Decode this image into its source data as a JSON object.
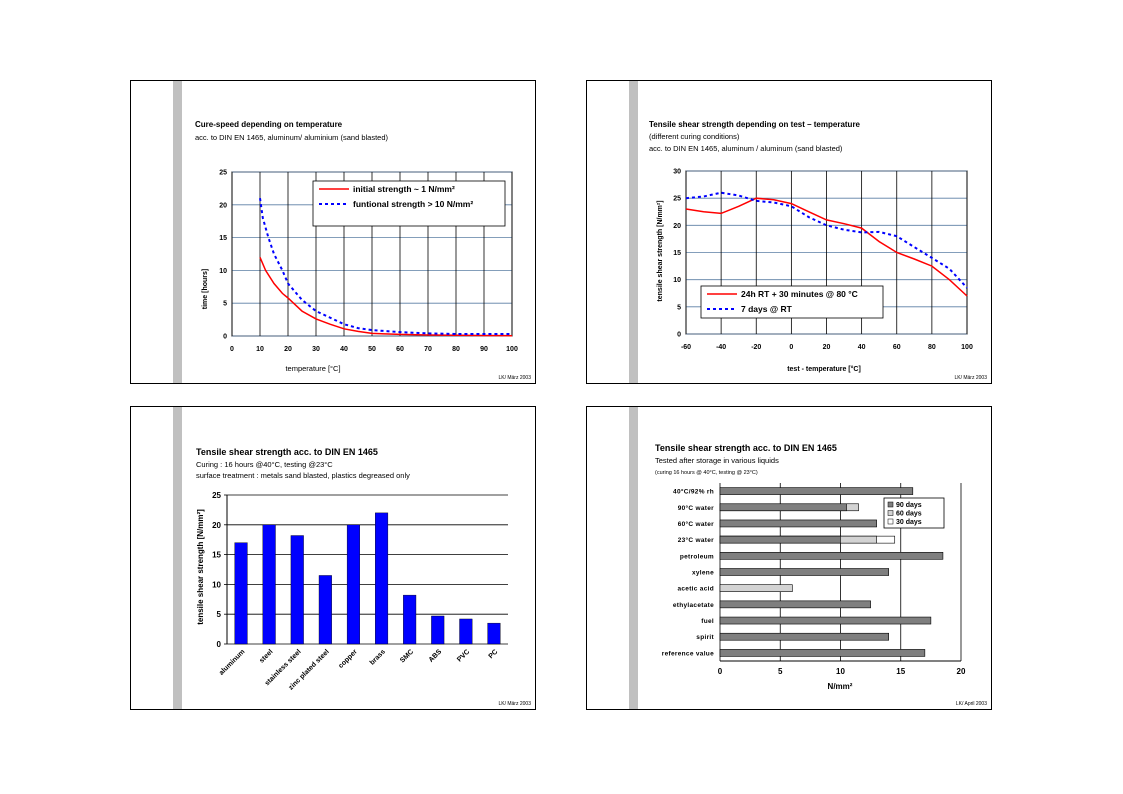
{
  "slides": [
    {
      "title": "Cure-speed depending on temperature",
      "subtitle": [
        "acc. to DIN EN 1465, aluminum/ aluminium (sand blasted)"
      ],
      "footer": "LK/ März 2003"
    },
    {
      "title": "Tensile shear strength depending on  test – temperature",
      "subtitle": [
        "(different curing conditions)",
        "acc. to DIN EN 1465, aluminum / aluminum (sand blasted)"
      ],
      "footer": "LK/ März 2003"
    },
    {
      "title": "Tensile shear strength acc. to DIN EN 1465",
      "subtitle": [
        "Curing  : 16 hours @40°C,  testing @23°C",
        "surface treatment : metals sand blasted, plastics degreased only"
      ],
      "footer": "LK/ März 2003"
    },
    {
      "title": "Tensile shear strength acc. to DIN EN 1465",
      "subtitle": [
        "Tested after storage in various liquids",
        "(curing 16 hours @ 40°C,  testing @ 23°C)"
      ],
      "footer": "LK/ April 2003"
    }
  ],
  "chart_data": [
    {
      "type": "line",
      "xlabel": "temperature [°C]",
      "ylabel": "time [hours]",
      "xlim": [
        0,
        100
      ],
      "ylim": [
        0,
        25
      ],
      "xticks": [
        0,
        10,
        20,
        30,
        40,
        50,
        60,
        70,
        80,
        90,
        100
      ],
      "yticks": [
        0,
        5,
        10,
        15,
        20,
        25
      ],
      "grid": true,
      "legend_position": "top-right",
      "series": [
        {
          "name": "initial strength      ~  1 N/mm²",
          "color": "#ff0000",
          "style": "solid",
          "x": [
            10,
            12,
            15,
            18,
            20,
            25,
            30,
            35,
            40,
            45,
            50,
            60,
            70,
            80,
            90,
            100
          ],
          "y": [
            12,
            10,
            8,
            6.5,
            5.8,
            3.8,
            2.6,
            1.8,
            1.1,
            0.7,
            0.4,
            0.25,
            0.15,
            0.1,
            0.08,
            0.05
          ]
        },
        {
          "name": "funtional strength > 10 N/mm²",
          "color": "#0000ff",
          "style": "dashed",
          "x": [
            10,
            11,
            13,
            15,
            18,
            20,
            25,
            30,
            35,
            40,
            45,
            50,
            60,
            70,
            80,
            90,
            100
          ],
          "y": [
            21,
            18,
            15,
            12.5,
            10,
            8,
            5.5,
            3.8,
            2.8,
            1.8,
            1.2,
            0.9,
            0.6,
            0.4,
            0.3,
            0.3,
            0.3
          ]
        }
      ]
    },
    {
      "type": "line",
      "xlabel": "test - temperature [°C]",
      "ylabel": "tensile shear strength [N/mm²]",
      "xlim": [
        -60,
        100
      ],
      "ylim": [
        0,
        30
      ],
      "xticks": [
        -60,
        -40,
        -20,
        0,
        20,
        40,
        60,
        80,
        100
      ],
      "yticks": [
        0,
        5,
        10,
        15,
        20,
        25,
        30
      ],
      "grid": true,
      "legend_position": "bottom-center",
      "series": [
        {
          "name": "24h RT + 30 minutes @ 80 °C",
          "color": "#ff0000",
          "style": "solid",
          "x": [
            -60,
            -50,
            -40,
            -30,
            -20,
            -10,
            0,
            10,
            20,
            30,
            40,
            50,
            60,
            70,
            80,
            90,
            100
          ],
          "y": [
            23,
            22.5,
            22.2,
            23.5,
            25,
            24.7,
            24,
            22.5,
            21,
            20.3,
            19.5,
            17,
            15,
            13.8,
            12.5,
            10,
            7
          ]
        },
        {
          "name": "7 days @ RT",
          "color": "#0000ff",
          "style": "dashed",
          "x": [
            -60,
            -50,
            -40,
            -30,
            -20,
            -10,
            0,
            10,
            20,
            30,
            40,
            50,
            60,
            70,
            80,
            90,
            100
          ],
          "y": [
            25,
            25.3,
            26,
            25.5,
            24.5,
            24.2,
            23.5,
            21.5,
            20,
            19.2,
            18.7,
            18.8,
            18,
            16,
            14,
            12,
            8.5
          ]
        }
      ]
    },
    {
      "type": "bar",
      "ylabel": "tensile shear strength [N/mm²]",
      "ylim": [
        0,
        25
      ],
      "yticks": [
        0,
        5,
        10,
        15,
        20,
        25
      ],
      "grid": true,
      "color": "#0000ff",
      "categories": [
        "aluminum",
        "steel",
        "stainless steel",
        "zinc plated steel",
        "copper",
        "brass",
        "SMC",
        "ABS",
        "PVC",
        "PC"
      ],
      "values": [
        17,
        20,
        18.2,
        11.5,
        20,
        22,
        8.2,
        4.7,
        4.2,
        3.5
      ]
    },
    {
      "type": "bar",
      "orientation": "horizontal",
      "xlabel": "N/mm²",
      "xlim": [
        0,
        20
      ],
      "xticks": [
        0,
        5,
        10,
        15,
        20
      ],
      "grid": true,
      "legend_position": "top-right",
      "categories": [
        "40°C/92% rh",
        "90°C water",
        "60°C water",
        "23°C water",
        "petroleum",
        "xylene",
        "acetic acid",
        "ethylacetate",
        "fuel",
        "spirit",
        "reference value"
      ],
      "series": [
        {
          "name": "90 days",
          "color": "#7f7f7f",
          "values": [
            16,
            10.5,
            13,
            10,
            18.5,
            14,
            null,
            12.5,
            17.5,
            14,
            17
          ]
        },
        {
          "name": "60 days",
          "color": "#d3d3d3",
          "values": [
            null,
            11.5,
            null,
            13,
            null,
            null,
            6,
            null,
            null,
            null,
            null
          ]
        },
        {
          "name": "30 days",
          "color": "#ffffff",
          "values": [
            null,
            null,
            null,
            14.5,
            null,
            null,
            null,
            null,
            null,
            null,
            null
          ]
        }
      ]
    }
  ]
}
